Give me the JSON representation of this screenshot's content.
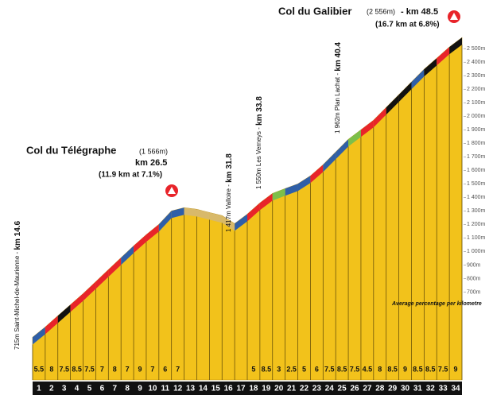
{
  "chart_data": {
    "type": "profile",
    "x": [
      0,
      1,
      2,
      3,
      4,
      5,
      6,
      7,
      8,
      9,
      10,
      11,
      12,
      13,
      14,
      15,
      16,
      17,
      18,
      19,
      20,
      21,
      22,
      23,
      24,
      25,
      26,
      27,
      28,
      29,
      30,
      31,
      32,
      33,
      34
    ],
    "values": [
      365,
      441,
      524,
      606,
      688,
      776,
      865,
      953,
      1041,
      1124,
      1200,
      1300,
      1324,
      1312,
      1288,
      1265,
      1206,
      1276,
      1359,
      1429,
      1465,
      1500,
      1559,
      1641,
      1735,
      1829,
      1900,
      1971,
      2065,
      2159,
      2253,
      2347,
      2429,
      2512,
      2582
    ],
    "categories": [
      "1",
      "2",
      "3",
      "4",
      "5",
      "6",
      "7",
      "8",
      "9",
      "10",
      "11",
      "12",
      "13",
      "14",
      "15",
      "16",
      "17",
      "18",
      "19",
      "20",
      "21",
      "22",
      "23",
      "24",
      "25",
      "26",
      "27",
      "28",
      "29",
      "30",
      "31",
      "32",
      "33",
      "34"
    ],
    "gradients": [
      5.5,
      8,
      7.5,
      8.5,
      7.5,
      7,
      8,
      7,
      9,
      7,
      6,
      7,
      null,
      null,
      null,
      null,
      null,
      5,
      8.5,
      3,
      2.5,
      5,
      6,
      7.5,
      8.5,
      7.5,
      4.5,
      8,
      8.5,
      9,
      8.5,
      8.5,
      7.5,
      9
    ],
    "colors": [
      "#2f5fa8",
      "#e8242a",
      "#111111",
      "#e8242a",
      "#e8242a",
      "#e8242a",
      "#e8242a",
      "#2f5fa8",
      "#e8242a",
      "#e8242a",
      "#2f5fa8",
      "#2f5fa8",
      "#d8b96a",
      "#d8b96a",
      "#d8b96a",
      "#d8b96a",
      "#2f5fa8",
      "#e8242a",
      "#e8242a",
      "#7cbf4a",
      "#2f5fa8",
      "#2f5fa8",
      "#e8242a",
      "#2f5fa8",
      "#2f5fa8",
      "#7cbf4a",
      "#e8242a",
      "#e8242a",
      "#111111",
      "#111111",
      "#2f5fa8",
      "#111111",
      "#e8242a",
      "#111111"
    ],
    "fill": "#f2c21b",
    "xlim": [
      0,
      34
    ],
    "ylim": [
      50,
      2860
    ],
    "yticks": [
      {
        "value": 700,
        "label": "700m"
      },
      {
        "value": 800,
        "label": "800m"
      },
      {
        "value": 900,
        "label": "900m"
      },
      {
        "value": 1000,
        "label": "1 000m"
      },
      {
        "value": 1100,
        "label": "1 100m"
      },
      {
        "value": 1200,
        "label": "1 200m"
      },
      {
        "value": 1300,
        "label": "1 300m"
      },
      {
        "value": 1400,
        "label": "1 400m"
      },
      {
        "value": 1500,
        "label": "1 500m"
      },
      {
        "value": 1600,
        "label": "1 600m"
      },
      {
        "value": 1700,
        "label": "1 700m"
      },
      {
        "value": 1800,
        "label": "1 800m"
      },
      {
        "value": 1900,
        "label": "1 900m"
      },
      {
        "value": 2000,
        "label": "2 000m"
      },
      {
        "value": 2100,
        "label": "2 100m"
      },
      {
        "value": 2200,
        "label": "2 200m"
      },
      {
        "value": 2300,
        "label": "2 300m"
      },
      {
        "value": 2400,
        "label": "2 400m"
      },
      {
        "value": 2500,
        "label": "2 500m"
      }
    ],
    "annotations": {
      "galibier_name": "Col du Galibier",
      "galibier_alt": "(2 556m)",
      "galibier_km": "- km 48.5",
      "galibier_climb": "(16.7 km at 6.8%)",
      "telegraphe_name": "Col du Télégraphe",
      "telegraphe_alt": "(1 566m)",
      "telegraphe_km": "km 26.5",
      "telegraphe_climb": "(11.9 km at 7.1%)",
      "start_place": "715m Saint-Michel-de-Maurienne -",
      "start_km": "km 14.6",
      "valloire_place": "1 417m Valloire -",
      "valloire_km": "km 31.8",
      "verneys_place": "1 550m Les Verneys -",
      "verneys_km": "km 33.8",
      "lachat_place": "1 962m Plan Lachat -",
      "lachat_km": "km 40.4",
      "average_note": "Average percentage per kilometre"
    }
  }
}
